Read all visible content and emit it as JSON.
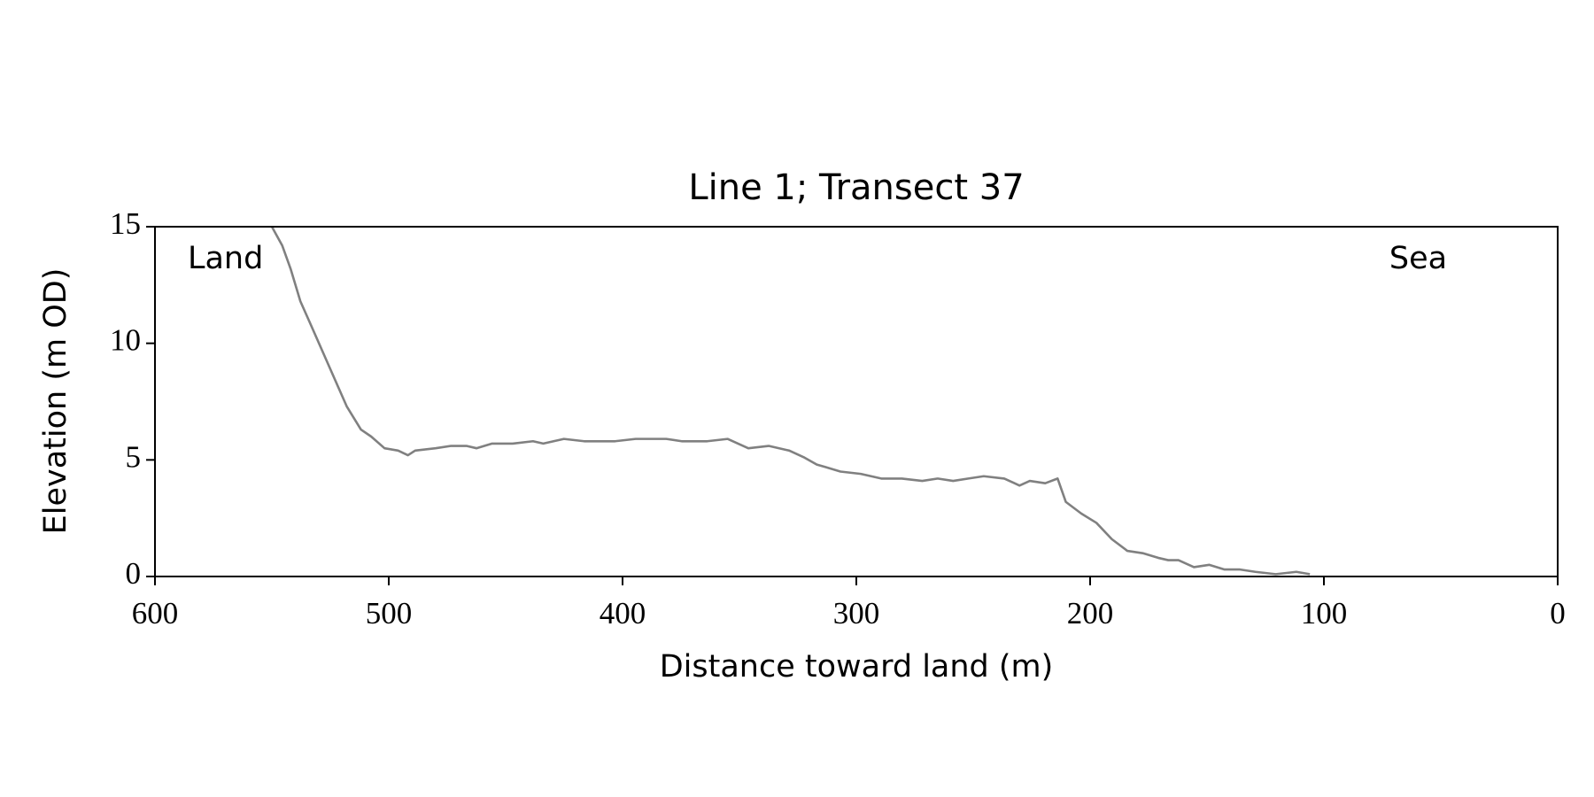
{
  "chart_data": {
    "type": "line",
    "title": "Line 1; Transect 37",
    "xlabel": "Distance toward land (m)",
    "ylabel": "Elevation (m OD)",
    "xlim": [
      600,
      0
    ],
    "xticks": [
      600,
      500,
      400,
      300,
      200,
      100,
      0
    ],
    "ylim": [
      0,
      15
    ],
    "yticks": [
      0,
      5,
      10,
      15
    ],
    "annotations": [
      {
        "text": "Land",
        "x": 586,
        "y": 13.6
      },
      {
        "text": "Sea",
        "x": 72,
        "y": 13.6
      }
    ],
    "series": [
      {
        "color": "#808080",
        "x": [
          550,
          545.6,
          542,
          537.8,
          533.8,
          525.9,
          518,
          511.9,
          507.5,
          501.8,
          496,
          491.8,
          488.7,
          480,
          473.4,
          466.8,
          462.4,
          455.8,
          447,
          438.3,
          433.9,
          425.1,
          416.4,
          403.2,
          394.4,
          381.3,
          374.7,
          363.8,
          355,
          350.6,
          346.2,
          337.5,
          328.7,
          322.2,
          316.9,
          313.4,
          306.8,
          298.1,
          289.3,
          280.5,
          271.8,
          265.2,
          258.6,
          252.1,
          245.5,
          236.7,
          230.2,
          225.8,
          219.2,
          213.9,
          210.4,
          203.8,
          197.3,
          190.7,
          184.1,
          177.5,
          170.9,
          166.6,
          162.2,
          155.6,
          149,
          142.5,
          135.9,
          129.3,
          120.6,
          111.8,
          106
        ],
        "values": [
          15,
          14.2,
          13.2,
          11.8,
          10.9,
          9.1,
          7.3,
          6.3,
          6.0,
          5.5,
          5.4,
          5.2,
          5.4,
          5.5,
          5.6,
          5.6,
          5.5,
          5.7,
          5.7,
          5.8,
          5.7,
          5.9,
          5.8,
          5.8,
          5.9,
          5.9,
          5.8,
          5.8,
          5.9,
          5.7,
          5.5,
          5.6,
          5.4,
          5.1,
          4.8,
          4.7,
          4.5,
          4.4,
          4.2,
          4.2,
          4.1,
          4.2,
          4.1,
          4.2,
          4.3,
          4.2,
          3.9,
          4.1,
          4.0,
          4.2,
          3.2,
          2.7,
          2.3,
          1.6,
          1.1,
          1.0,
          0.8,
          0.7,
          0.7,
          0.4,
          0.5,
          0.3,
          0.3,
          0.2,
          0.1,
          0.2,
          0.1
        ]
      }
    ]
  }
}
